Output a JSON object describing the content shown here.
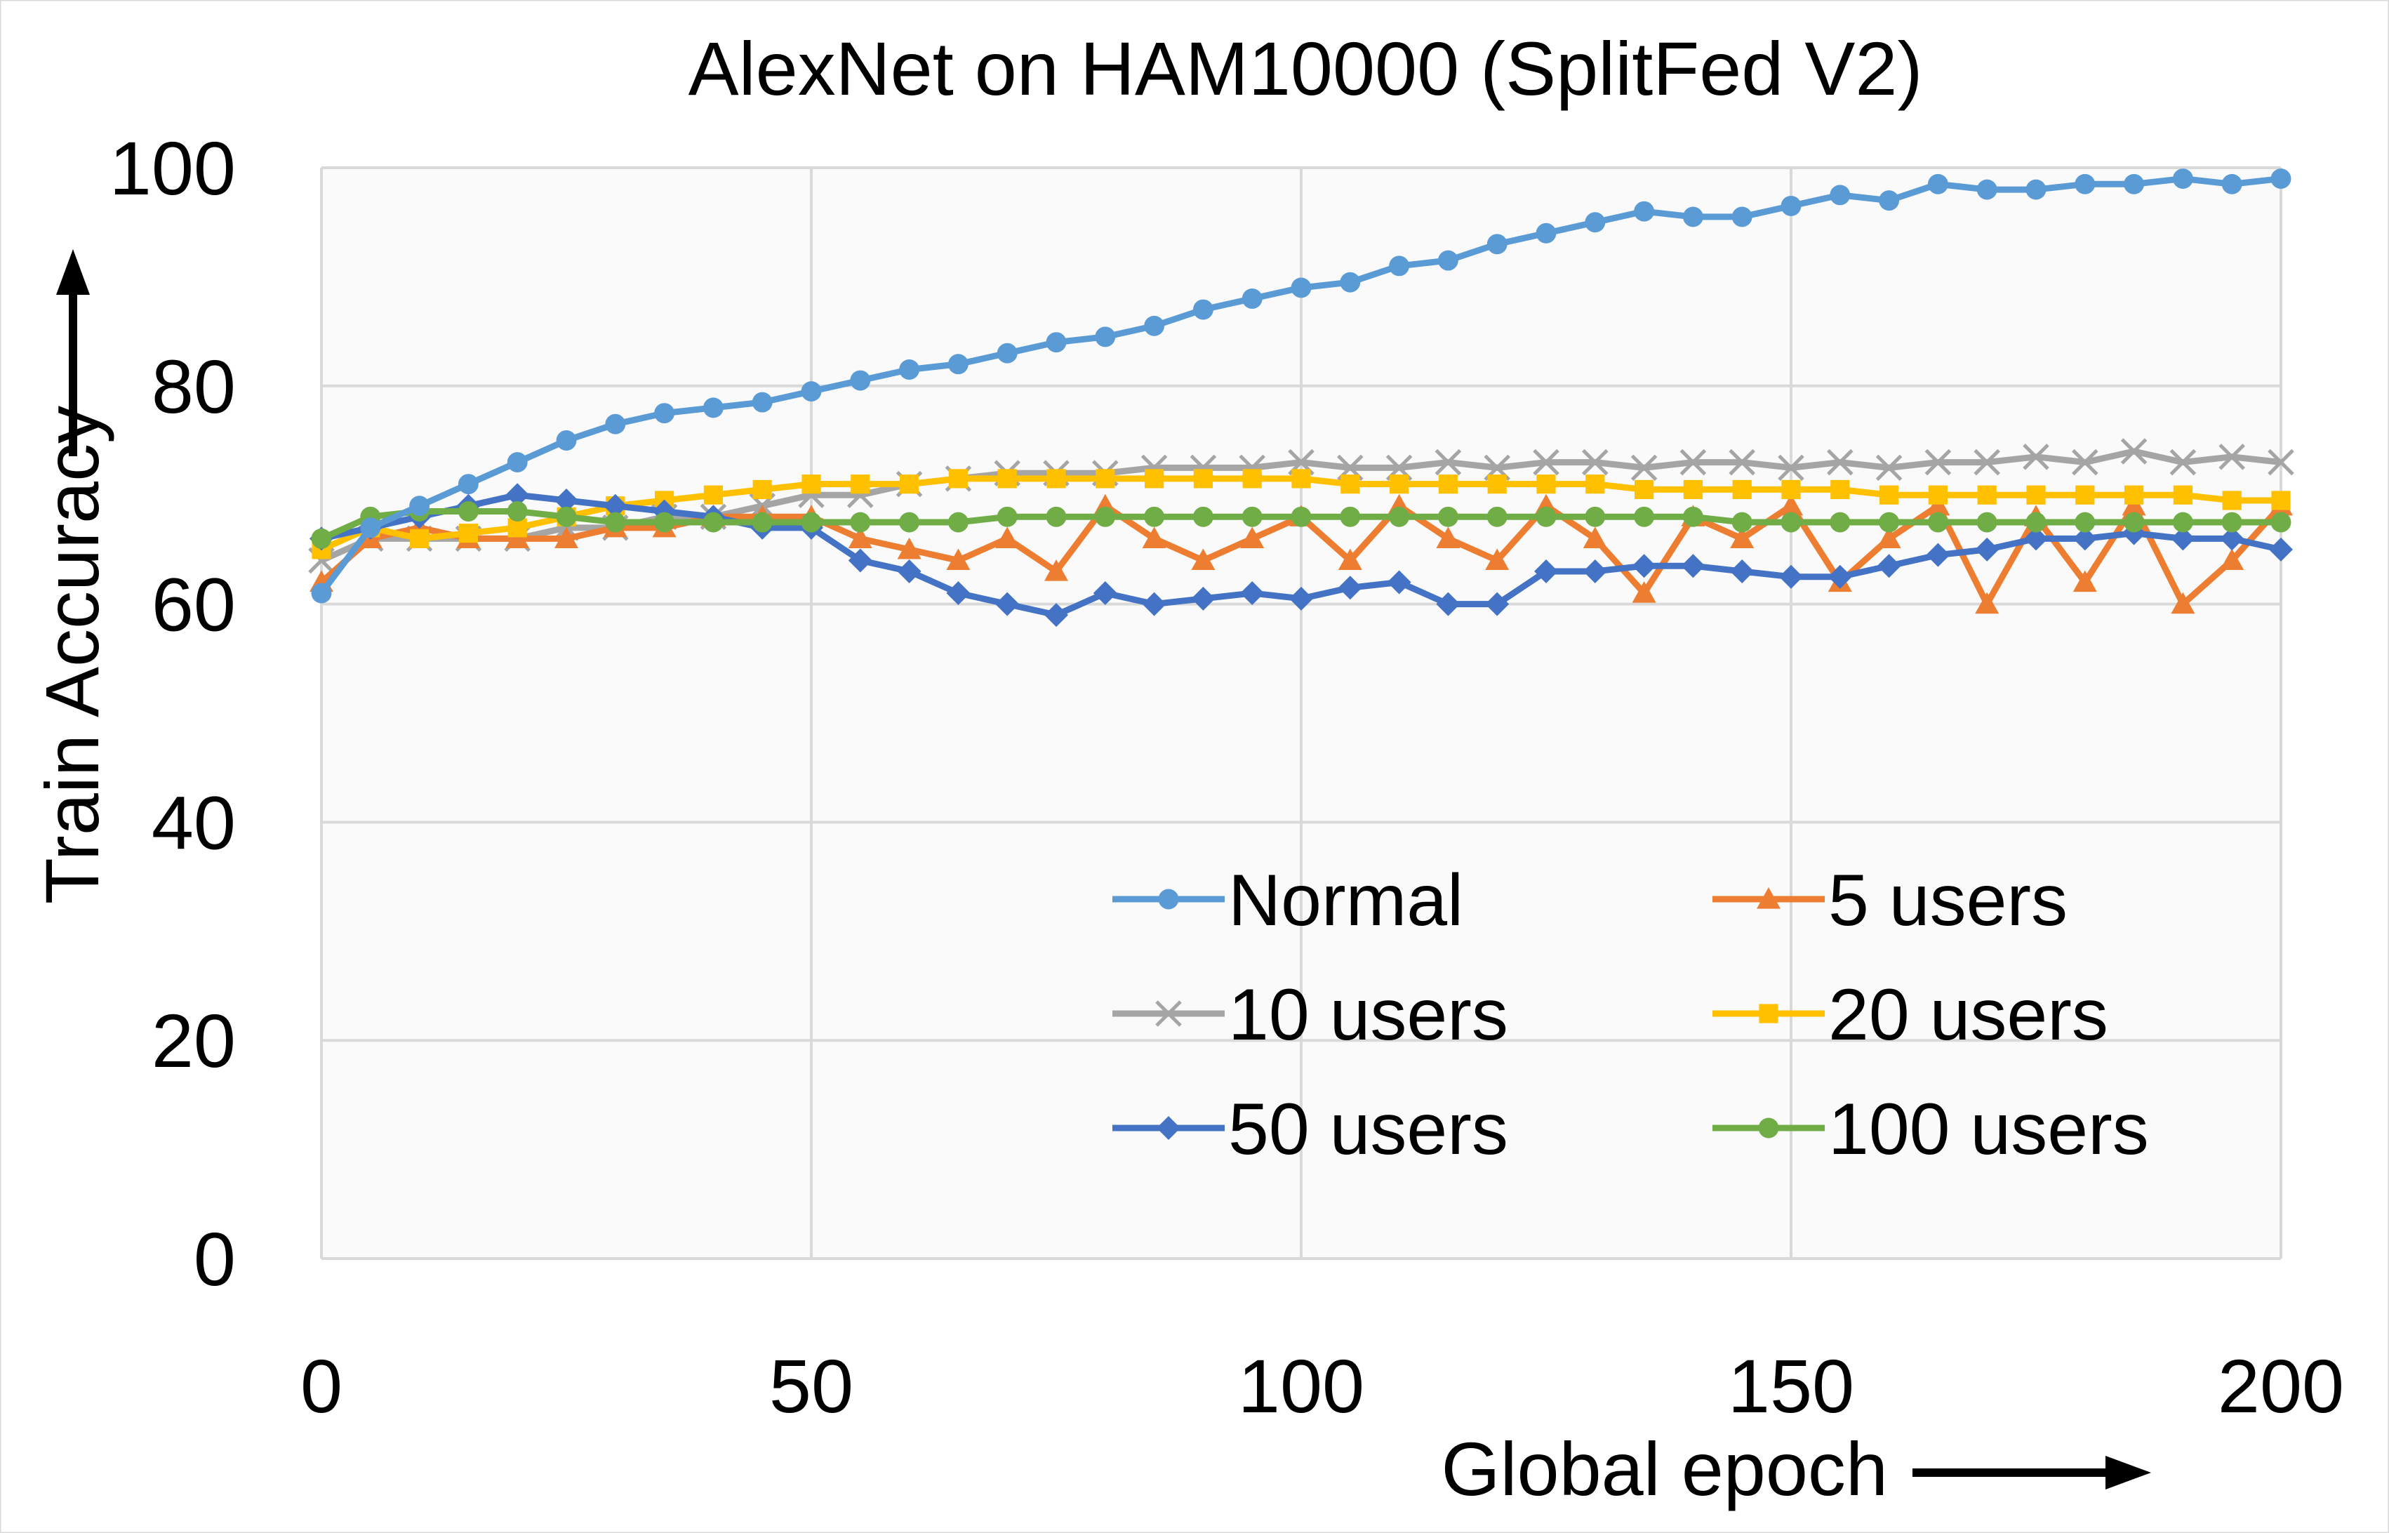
{
  "chart_data": {
    "type": "line",
    "title": "AlexNet on HAM10000 (SplitFed V2)",
    "xlabel": "Global epoch",
    "ylabel": "Train Accuracy",
    "xlim": [
      0,
      200
    ],
    "ylim": [
      0,
      100
    ],
    "xticks": [
      0,
      50,
      100,
      150,
      200
    ],
    "yticks": [
      0,
      20,
      40,
      60,
      80,
      100
    ],
    "grid": true,
    "legend_position": "lower-right",
    "x": [
      0,
      5,
      10,
      15,
      20,
      25,
      30,
      35,
      40,
      45,
      50,
      55,
      60,
      65,
      70,
      75,
      80,
      85,
      90,
      95,
      100,
      105,
      110,
      115,
      120,
      125,
      130,
      135,
      140,
      145,
      150,
      155,
      160,
      165,
      170,
      175,
      180,
      185,
      190,
      195,
      200
    ],
    "series": [
      {
        "name": "Normal",
        "color": "#5B9BD5",
        "marker": "circle",
        "values": [
          61,
          67,
          69,
          71,
          73,
          75,
          76.5,
          77.5,
          78,
          78.5,
          79.5,
          80.5,
          81.5,
          82,
          83,
          84,
          84.5,
          85.5,
          87,
          88,
          89,
          89.5,
          91,
          91.5,
          93,
          94,
          95,
          96,
          95.5,
          95.5,
          96.5,
          97.5,
          97,
          98.5,
          98,
          98,
          98.5,
          98.5,
          99,
          98.5,
          99
        ]
      },
      {
        "name": "5 users",
        "color": "#ED7D31",
        "marker": "triangle",
        "values": [
          62,
          66,
          67,
          66,
          66,
          66,
          67,
          67,
          68,
          68,
          68,
          66,
          65,
          64,
          66,
          63,
          69,
          66,
          64,
          66,
          68,
          64,
          69,
          66,
          64,
          69,
          66,
          61,
          68,
          66,
          69,
          62,
          66,
          69,
          60,
          68,
          62,
          69,
          60,
          64,
          69
        ]
      },
      {
        "name": "10 users",
        "color": "#A5A5A5",
        "marker": "x",
        "values": [
          64,
          66,
          66,
          66,
          66,
          67,
          67,
          68,
          68,
          69,
          70,
          70,
          71,
          71.5,
          72,
          72,
          72,
          72.5,
          72.5,
          72.5,
          73,
          72.5,
          72.5,
          73,
          72.5,
          73,
          73,
          72.5,
          73,
          73,
          72.5,
          73,
          72.5,
          73,
          73,
          73.5,
          73,
          74,
          73,
          73.5,
          73
        ]
      },
      {
        "name": "20 users",
        "color": "#FFC000",
        "marker": "square",
        "values": [
          65,
          67,
          66,
          66.5,
          67,
          68,
          69,
          69.5,
          70,
          70.5,
          71,
          71,
          71,
          71.5,
          71.5,
          71.5,
          71.5,
          71.5,
          71.5,
          71.5,
          71.5,
          71,
          71,
          71,
          71,
          71,
          71,
          70.5,
          70.5,
          70.5,
          70.5,
          70.5,
          70,
          70,
          70,
          70,
          70,
          70,
          70,
          69.5,
          69.5
        ]
      },
      {
        "name": "50 users",
        "color": "#4472C4",
        "marker": "diamond",
        "values": [
          66,
          67,
          68,
          69,
          70,
          69.5,
          69,
          68.5,
          68,
          67,
          67,
          64,
          63,
          61,
          60,
          59,
          61,
          60,
          60.5,
          61,
          60.5,
          61.5,
          62,
          60,
          60,
          63,
          63,
          63.5,
          63.5,
          63,
          62.5,
          62.5,
          63.5,
          64.5,
          65,
          66,
          66,
          66.5,
          66,
          66,
          65
        ]
      },
      {
        "name": "100 users",
        "color": "#70AD47",
        "marker": "circle",
        "values": [
          66,
          68,
          68.5,
          68.5,
          68.5,
          68,
          67.5,
          67.5,
          67.5,
          67.5,
          67.5,
          67.5,
          67.5,
          67.5,
          68,
          68,
          68,
          68,
          68,
          68,
          68,
          68,
          68,
          68,
          68,
          68,
          68,
          68,
          68,
          67.5,
          67.5,
          67.5,
          67.5,
          67.5,
          67.5,
          67.5,
          67.5,
          67.5,
          67.5,
          67.5,
          67.5
        ]
      }
    ]
  }
}
